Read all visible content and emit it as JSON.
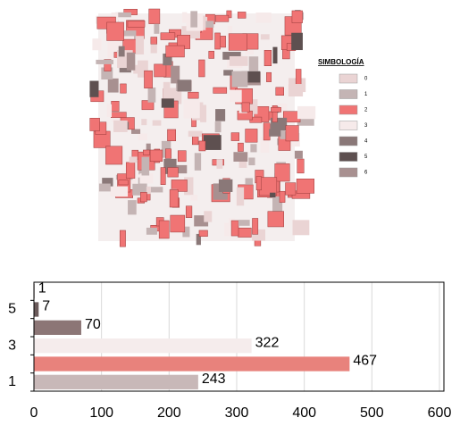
{
  "map_legend": {
    "title": "SIMBOLOGÍA",
    "items": [
      {
        "label": "0",
        "color": "#ead4d4"
      },
      {
        "label": "1",
        "color": "#c4b4b4"
      },
      {
        "label": "2",
        "color": "#f07474"
      },
      {
        "label": "3",
        "color": "#f6eaea"
      },
      {
        "label": "4",
        "color": "#8a7878"
      },
      {
        "label": "5",
        "color": "#5e5050"
      },
      {
        "label": "6",
        "color": "#a89090"
      }
    ]
  },
  "chart_data": {
    "type": "bar",
    "orientation": "horizontal",
    "categories": [
      "1",
      null,
      "3",
      null,
      "5",
      null
    ],
    "values": [
      243,
      467,
      322,
      70,
      7,
      1
    ],
    "colors": [
      "#c8b8b8",
      "#e8827c",
      "#f5ecec",
      "#8c7676",
      "#6a5a5a",
      "#a09090"
    ],
    "xlim": [
      0,
      600
    ],
    "xticks": [
      0,
      100,
      200,
      300,
      400,
      500,
      600
    ],
    "grid": true
  }
}
